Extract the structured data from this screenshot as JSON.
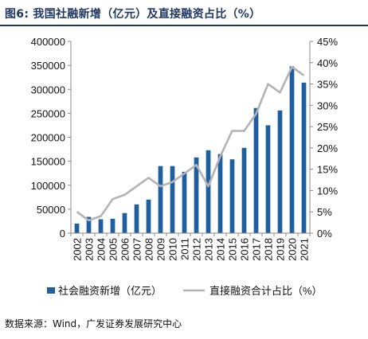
{
  "figure": {
    "title": "图6:  我国社融新增（亿元）及直接融资占比（%）",
    "source": "数据来源：Wind，广发证券发展研究中心"
  },
  "chart_data": {
    "type": "bar+line",
    "categories": [
      "2002",
      "2003",
      "2004",
      "2005",
      "2006",
      "2007",
      "2008",
      "2009",
      "2010",
      "2011",
      "2012",
      "2013",
      "2014",
      "2015",
      "2016",
      "2017",
      "2018",
      "2019",
      "2020",
      "2021"
    ],
    "series": [
      {
        "name": "社会融资新增（亿元）",
        "kind": "bar",
        "axis": "left",
        "color": "#1f5fa0",
        "values": [
          20000,
          34000,
          29000,
          30000,
          42000,
          60000,
          70000,
          140000,
          140000,
          128000,
          158000,
          173000,
          165000,
          154000,
          178000,
          261000,
          225000,
          256000,
          348000,
          314000
        ]
      },
      {
        "name": "直接融资合计占比（%）",
        "kind": "line",
        "axis": "right",
        "color": "#b3b3b3",
        "values": [
          5,
          3,
          4,
          8,
          9,
          11,
          13,
          11,
          12,
          14,
          16,
          11,
          18,
          24,
          24,
          28,
          35,
          33,
          39,
          37
        ]
      }
    ],
    "y_left": {
      "min": 0,
      "max": 400000,
      "ticks": [
        0,
        50000,
        100000,
        150000,
        200000,
        250000,
        300000,
        350000,
        400000
      ]
    },
    "y_right": {
      "min": 0,
      "max": 45,
      "ticks": [
        "0%",
        "5%",
        "10%",
        "15%",
        "20%",
        "25%",
        "30%",
        "35%",
        "40%",
        "45%"
      ]
    },
    "grid": false,
    "legend_position": "bottom"
  }
}
